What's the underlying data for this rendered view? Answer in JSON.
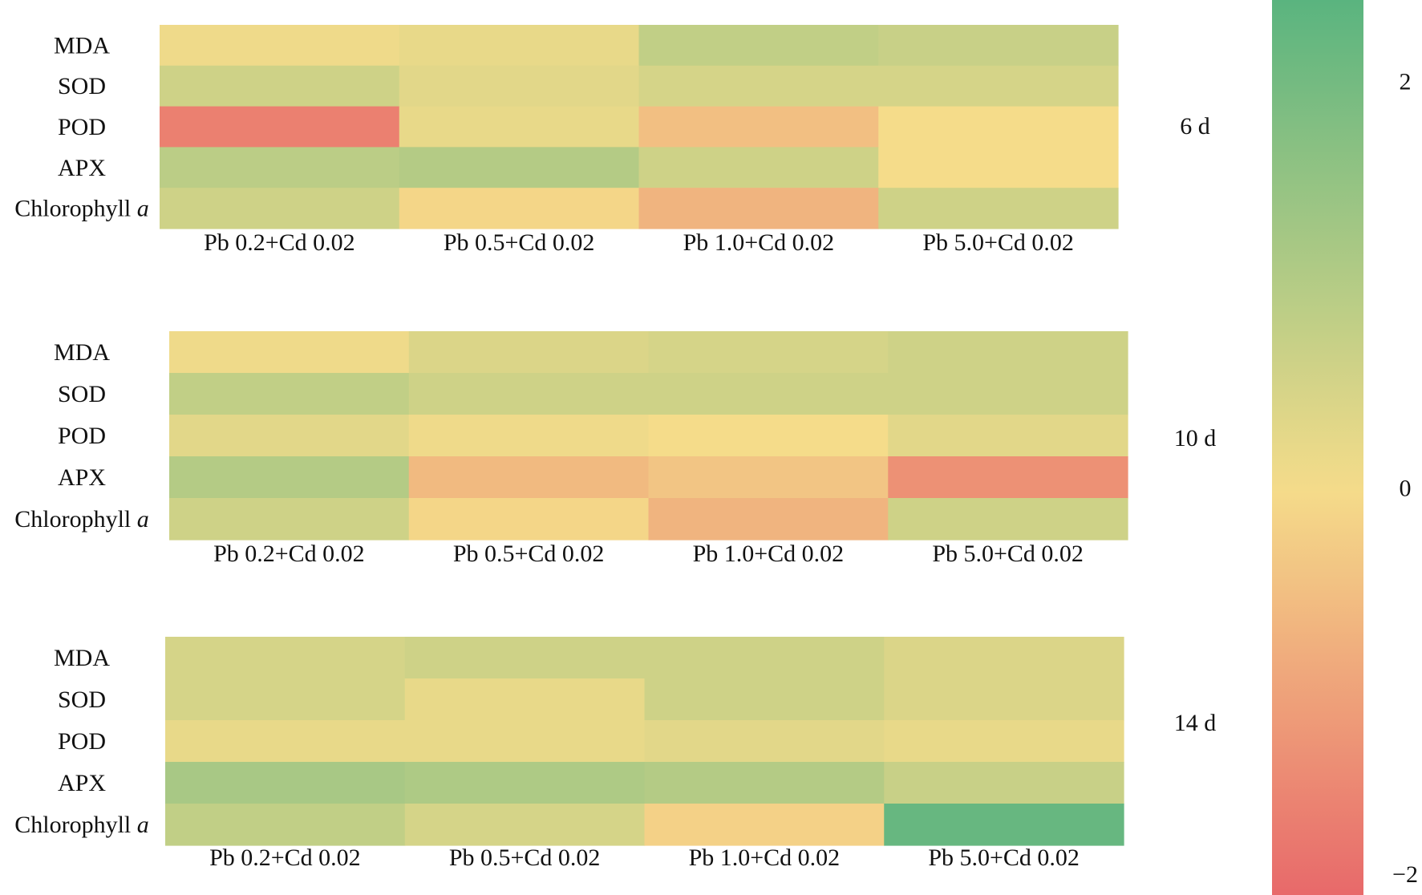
{
  "chart_data": {
    "type": "heatmap",
    "rows": [
      "MDA",
      "SOD",
      "POD",
      "APX",
      "Chlorophyll"
    ],
    "row_suffix": [
      "",
      "",
      "",
      "",
      "a"
    ],
    "columns": [
      "Pb 0.2+Cd 0.02",
      "Pb 0.5+Cd 0.02",
      "Pb 1.0+Cd 0.02",
      "Pb 5.0+Cd 0.02"
    ],
    "panels": [
      {
        "label": "6 d",
        "values": [
          [
            0.1,
            0.2,
            0.8,
            0.7
          ],
          [
            0.6,
            0.3,
            0.5,
            0.5
          ],
          [
            -1.6,
            0.2,
            -0.5,
            0.0
          ],
          [
            0.9,
            1.0,
            0.6,
            0.0
          ],
          [
            0.6,
            -0.1,
            -0.7,
            0.6
          ]
        ]
      },
      {
        "label": "10 d",
        "values": [
          [
            0.1,
            0.4,
            0.5,
            0.6
          ],
          [
            0.8,
            0.6,
            0.6,
            0.6
          ],
          [
            0.3,
            0.1,
            0.0,
            0.3
          ],
          [
            1.0,
            -0.6,
            -0.4,
            -1.3
          ],
          [
            0.6,
            -0.1,
            -0.7,
            0.6
          ]
        ]
      },
      {
        "label": "14 d",
        "values": [
          [
            0.5,
            0.6,
            0.6,
            0.4
          ],
          [
            0.5,
            0.2,
            0.6,
            0.4
          ],
          [
            0.2,
            0.2,
            0.3,
            0.2
          ],
          [
            1.2,
            1.1,
            1.0,
            0.7
          ],
          [
            0.8,
            0.5,
            -0.2,
            2.2
          ]
        ]
      }
    ],
    "colorbar": {
      "vmin": -2,
      "vmax": 2.4,
      "ticks": [
        2,
        0,
        -2
      ],
      "tick_labels": [
        "2",
        "0",
        "−2"
      ],
      "colors": {
        "low": "#e8696a",
        "mid": "#f5dc8a",
        "high": "#5ab47f"
      }
    }
  }
}
